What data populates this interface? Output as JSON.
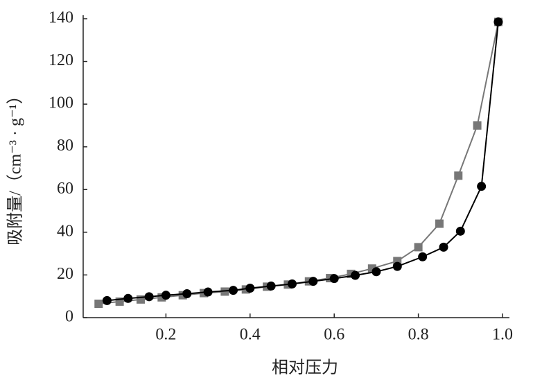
{
  "chart_data": {
    "type": "line",
    "x_label": "相对压力",
    "y_label": "吸附量/（cm⁻³ · g⁻¹）",
    "xlim": [
      0,
      1
    ],
    "xticks": [
      0.2,
      0.4,
      0.6,
      0.8,
      {
        "value": 1,
        "label": "1.0"
      }
    ],
    "ylim": [
      0,
      140
    ],
    "yticks": [
      0,
      20,
      40,
      60,
      80,
      100,
      120,
      140
    ],
    "series": [
      {
        "color": "#777777",
        "marker": "square",
        "x": [
          0.04,
          0.09,
          0.14,
          0.19,
          0.24,
          0.29,
          0.34,
          0.39,
          0.44,
          0.49,
          0.54,
          0.59,
          0.64,
          0.69,
          0.75,
          0.8,
          0.85,
          0.895,
          0.94,
          0.99
        ],
        "values": [
          6.5,
          7.5,
          8.5,
          9.5,
          10.5,
          11.5,
          12.2,
          13.2,
          14.5,
          15.5,
          17,
          18.5,
          20.5,
          23,
          26.5,
          33,
          44,
          66.5,
          90,
          138.5
        ]
      },
      {
        "color": "#000000",
        "marker": "circle",
        "x": [
          0.06,
          0.11,
          0.16,
          0.2,
          0.25,
          0.3,
          0.36,
          0.4,
          0.45,
          0.5,
          0.55,
          0.6,
          0.65,
          0.7,
          0.75,
          0.81,
          0.86,
          0.9,
          0.95,
          0.99
        ],
        "values": [
          8,
          9,
          9.8,
          10.5,
          11.2,
          12,
          12.8,
          13.8,
          14.8,
          15.8,
          17,
          18.3,
          19.8,
          21.5,
          24,
          28.5,
          33,
          40.5,
          61.5,
          138.5
        ]
      }
    ]
  }
}
